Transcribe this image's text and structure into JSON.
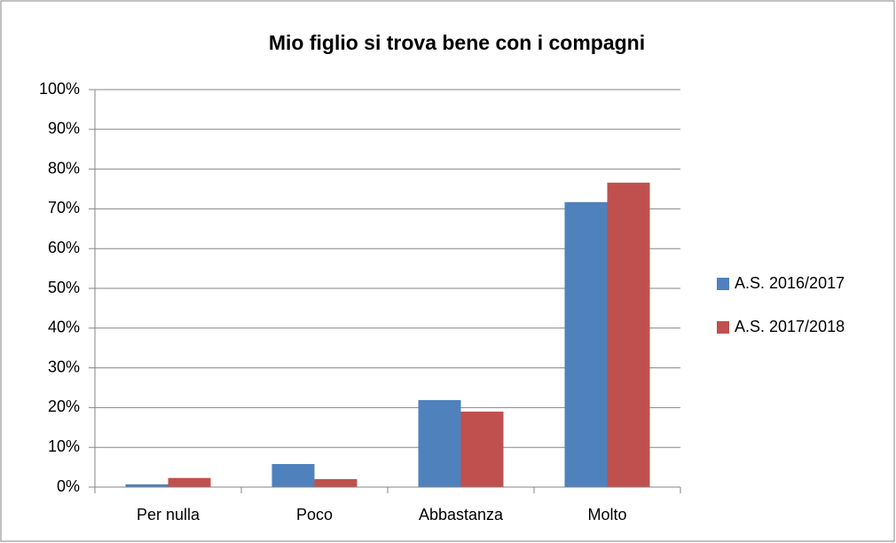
{
  "chart_data": {
    "type": "bar",
    "title": "Mio figlio si trova bene con i compagni",
    "categories": [
      "Per nulla",
      "Poco",
      "Abbastanza",
      "Molto"
    ],
    "series": [
      {
        "name": "A.S. 2016/2017",
        "color": "#4f81bd",
        "values": [
          0.7,
          5.8,
          21.9,
          71.7
        ]
      },
      {
        "name": "A.S. 2017/2018",
        "color": "#c0504d",
        "values": [
          2.3,
          2.0,
          19.0,
          76.6
        ]
      }
    ],
    "ylim": [
      0,
      100
    ],
    "yticks": [
      {
        "value": 0,
        "label": "0%"
      },
      {
        "value": 10,
        "label": "10%"
      },
      {
        "value": 20,
        "label": "20%"
      },
      {
        "value": 30,
        "label": "30%"
      },
      {
        "value": 40,
        "label": "40%"
      },
      {
        "value": 50,
        "label": "50%"
      },
      {
        "value": 60,
        "label": "60%"
      },
      {
        "value": 70,
        "label": "70%"
      },
      {
        "value": 80,
        "label": "80%"
      },
      {
        "value": 90,
        "label": "90%"
      },
      {
        "value": 100,
        "label": "100%"
      }
    ],
    "grid": true,
    "legend": "right"
  }
}
